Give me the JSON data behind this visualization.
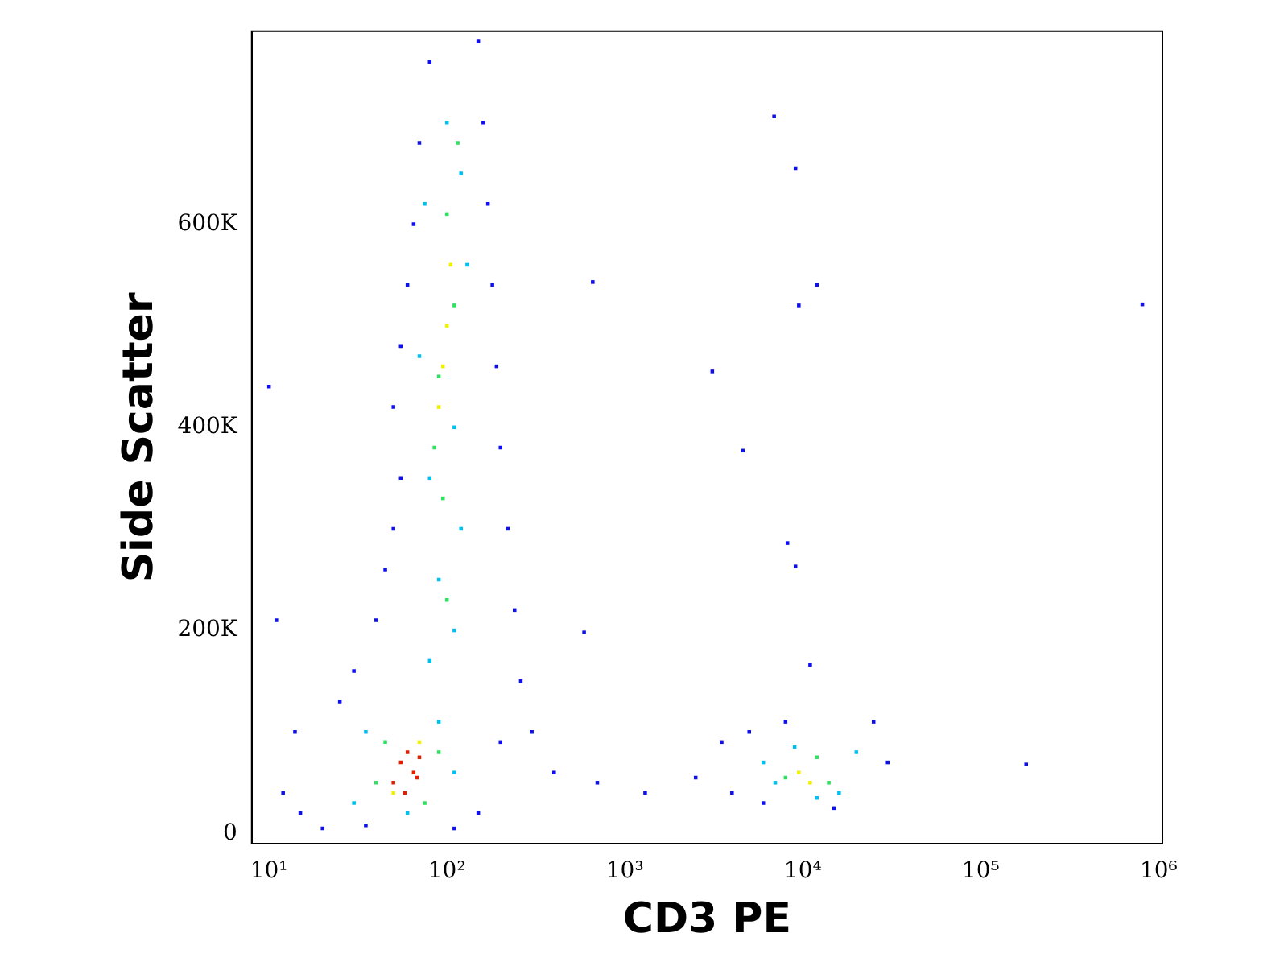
{
  "chart_data": {
    "type": "scatter",
    "xlabel": "CD3 PE",
    "ylabel": "Side Scatter",
    "log": "x",
    "grid": false,
    "legend": false,
    "marker": "square",
    "xlim": [
      8,
      1050000
    ],
    "xticks": [
      {
        "value": 10,
        "label": "10¹"
      },
      {
        "value": 100,
        "label": "10²"
      },
      {
        "value": 1000,
        "label": "10³"
      },
      {
        "value": 10000,
        "label": "10⁴"
      },
      {
        "value": 100000,
        "label": "10⁵"
      },
      {
        "value": 1000000,
        "label": "10⁶"
      }
    ],
    "ylim": [
      -10000,
      790000
    ],
    "yticks": [
      0,
      {
        "value": 200000,
        "label": "200K"
      },
      {
        "value": 400000,
        "label": "400K"
      },
      {
        "value": 600000,
        "label": "600K"
      }
    ],
    "series": [
      {
        "color": "#1010e8",
        "x": [
          12,
          15,
          14,
          20,
          25,
          30,
          35,
          40,
          45,
          50,
          55,
          50,
          55,
          60,
          65,
          70,
          80,
          150,
          160,
          170,
          180,
          190,
          200,
          220,
          240,
          260,
          200,
          150,
          300,
          110,
          400,
          700,
          1300,
          2500,
          4000,
          5000,
          3500,
          6000,
          30000,
          25000,
          15000,
          8000,
          180000,
          810000,
          3100,
          4600,
          660,
          590,
          8200,
          9100,
          11000,
          6900,
          9100,
          9500,
          12000,
          10,
          11
        ],
        "values": [
          40000,
          20000,
          100000,
          5000,
          130000,
          160000,
          8000,
          210000,
          260000,
          300000,
          350000,
          420000,
          480000,
          540000,
          600000,
          680000,
          760000,
          780000,
          700000,
          620000,
          540000,
          460000,
          380000,
          300000,
          220000,
          150000,
          90000,
          20000,
          100000,
          5000,
          60000,
          50000,
          40000,
          55000,
          40000,
          100000,
          90000,
          30000,
          70000,
          110000,
          25000,
          110000,
          68000,
          521000,
          455000,
          377000,
          543000,
          198000,
          286000,
          263000,
          166000,
          706000,
          655000,
          520000,
          540000,
          440000,
          210000
        ]
      },
      {
        "color": "#00c0f0",
        "x": [
          30,
          35,
          90,
          110,
          60,
          80,
          110,
          90,
          120,
          80,
          100,
          120,
          75,
          130,
          70,
          110,
          7000,
          9000,
          16000,
          20000,
          12000,
          6000
        ],
        "values": [
          30000,
          100000,
          110000,
          60000,
          20000,
          170000,
          200000,
          250000,
          300000,
          350000,
          700000,
          650000,
          620000,
          560000,
          470000,
          400000,
          50000,
          85000,
          40000,
          80000,
          35000,
          70000
        ]
      },
      {
        "color": "#30e060",
        "x": [
          40,
          45,
          90,
          75,
          100,
          95,
          85,
          90,
          110,
          100,
          115,
          8000,
          12000,
          14000
        ],
        "values": [
          50000,
          90000,
          80000,
          30000,
          230000,
          330000,
          380000,
          450000,
          520000,
          610000,
          680000,
          55000,
          75000,
          50000
        ]
      },
      {
        "color": "#f0f000",
        "x": [
          50,
          70,
          95,
          100,
          105,
          90,
          9500,
          11000
        ],
        "values": [
          40000,
          90000,
          460000,
          500000,
          560000,
          420000,
          60000,
          50000
        ]
      },
      {
        "color": "#e02000",
        "x": [
          50,
          55,
          60,
          65,
          70,
          58,
          68
        ],
        "values": [
          50000,
          70000,
          80000,
          60000,
          75000,
          40000,
          55000
        ]
      }
    ]
  }
}
